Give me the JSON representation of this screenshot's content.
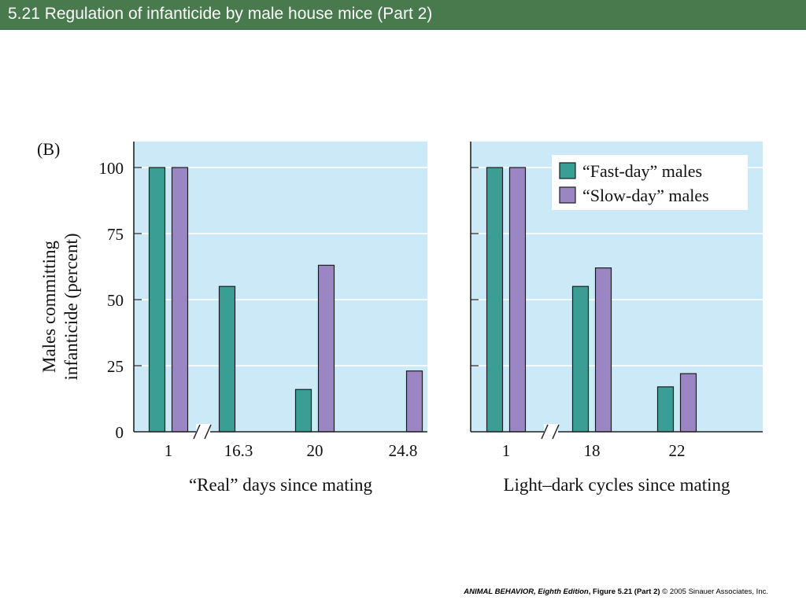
{
  "slide": {
    "title": "5.21  Regulation of infanticide by male house mice (Part 2)",
    "header_color": "#497a4e",
    "footer": {
      "book": "ANIMAL BEHAVIOR, Eighth Edition",
      "figure": ", Figure 5.21 (Part 2)",
      "copyright": " © 2005 Sinauer Associates, Inc."
    }
  },
  "chart_data": {
    "type": "bar",
    "panel_label": "(B)",
    "ylabel_lines": [
      "Males committing",
      "infanticide (percent)"
    ],
    "ylim": [
      0,
      110
    ],
    "yticks": [
      0,
      25,
      50,
      75,
      100
    ],
    "grid": true,
    "axis_break": true,
    "legend_position": "top-right",
    "colors": {
      "background": "#cce9f7",
      "fast": "#3a9e94",
      "slow": "#9a86c2",
      "grid": "#ffffff"
    },
    "series_names": [
      "“Fast-day” males",
      "“Slow-day” males"
    ],
    "panels": [
      {
        "xlabel": "“Real” days since mating",
        "categories": [
          "1",
          "16.3",
          "20",
          "24.8"
        ],
        "series": [
          {
            "name": "“Fast-day” males",
            "values": [
              100,
              55,
              16,
              null
            ]
          },
          {
            "name": "“Slow-day” males",
            "values": [
              100,
              null,
              63,
              23
            ]
          }
        ]
      },
      {
        "xlabel": "Light–dark cycles since mating",
        "categories": [
          "1",
          "18",
          "22"
        ],
        "series": [
          {
            "name": "“Fast-day” males",
            "values": [
              100,
              55,
              17
            ]
          },
          {
            "name": "“Slow-day” males",
            "values": [
              100,
              62,
              22
            ]
          }
        ]
      }
    ]
  }
}
